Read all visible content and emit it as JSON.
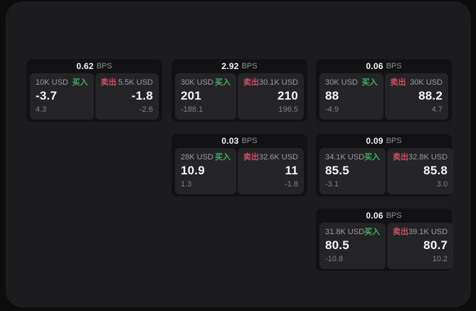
{
  "labels": {
    "bps_unit": "BPS",
    "buy": "买入",
    "sell": "卖出"
  },
  "colors": {
    "buy_green": "#3fae63",
    "sell_red": "#cd4f64",
    "panel_bg": "#1c1c1e",
    "card_bg": "#121214",
    "tile_bg": "#242427"
  },
  "cards": [
    {
      "bps": "0.62",
      "col": 0,
      "row": 0,
      "buy": {
        "size": "10K USD",
        "price": "-3.7",
        "delta": "4.3"
      },
      "sell": {
        "size": "5.5K USD",
        "price": "-1.8",
        "delta": "-2.6"
      }
    },
    {
      "bps": "2.92",
      "col": 1,
      "row": 0,
      "buy": {
        "size": "30K USD",
        "price": "201",
        "delta": "-188.1"
      },
      "sell": {
        "size": "30.1K USD",
        "price": "210",
        "delta": "196.5"
      }
    },
    {
      "bps": "0.06",
      "col": 2,
      "row": 0,
      "buy": {
        "size": "30K USD",
        "price": "88",
        "delta": "-4.9"
      },
      "sell": {
        "size": "30K USD",
        "price": "88.2",
        "delta": "4.7"
      }
    },
    {
      "bps": "0.03",
      "col": 1,
      "row": 1,
      "buy": {
        "size": "28K USD",
        "price": "10.9",
        "delta": "1.3"
      },
      "sell": {
        "size": "32.6K USD",
        "price": "11",
        "delta": "-1.8"
      }
    },
    {
      "bps": "0.09",
      "col": 2,
      "row": 1,
      "buy": {
        "size": "34.1K USD",
        "price": "85.5",
        "delta": "-3.1"
      },
      "sell": {
        "size": "32.8K USD",
        "price": "85.8",
        "delta": "3.0"
      }
    },
    {
      "bps": "0.06",
      "col": 2,
      "row": 2,
      "buy": {
        "size": "31.8K USD",
        "price": "80.5",
        "delta": "-10.8"
      },
      "sell": {
        "size": "39.1K USD",
        "price": "80.7",
        "delta": "10.2"
      }
    }
  ]
}
